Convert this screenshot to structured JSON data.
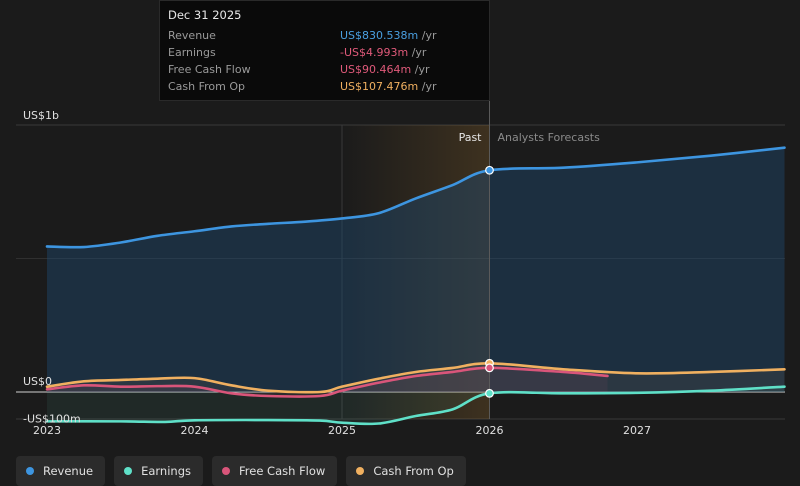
{
  "tooltip": {
    "date": "Dec 31 2025",
    "rows": [
      {
        "label": "Revenue",
        "value": "US$830.538m",
        "unit": "/yr",
        "color": "#4a9fe0"
      },
      {
        "label": "Earnings",
        "value": "-US$4.993m",
        "unit": "/yr",
        "color": "#e05a7a"
      },
      {
        "label": "Free Cash Flow",
        "value": "US$90.464m",
        "unit": "/yr",
        "color": "#e05a7a"
      },
      {
        "label": "Cash From Op",
        "value": "US$107.476m",
        "unit": "/yr",
        "color": "#f0b060"
      }
    ]
  },
  "legend": [
    {
      "label": "Revenue",
      "color": "#3d95e0"
    },
    {
      "label": "Earnings",
      "color": "#5fe0c8"
    },
    {
      "label": "Free Cash Flow",
      "color": "#d9557a"
    },
    {
      "label": "Cash From Op",
      "color": "#f0b060"
    }
  ],
  "chart_data": {
    "type": "area",
    "y_tick_labels": [
      "US$1b",
      "US$0",
      "-US$100m"
    ],
    "y_ticks": [
      1000,
      0,
      -100
    ],
    "ylim": [
      -200,
      1000
    ],
    "xlim": [
      2022.9,
      2028.0
    ],
    "x_ticks": [
      2023,
      2024,
      2025,
      2026,
      2027
    ],
    "x_tick_labels": [
      "2023",
      "2024",
      "2025",
      "2026",
      "2027"
    ],
    "past_label": "Past",
    "forecast_label": "Analysts Forecasts",
    "divider_x": 2026.0,
    "highlight_start_x": 2025.0,
    "series": [
      {
        "name": "Revenue",
        "color": "#3d95e0",
        "fill": true,
        "points": [
          [
            2023.0,
            545
          ],
          [
            2023.25,
            543
          ],
          [
            2023.5,
            560
          ],
          [
            2023.75,
            585
          ],
          [
            2024.0,
            602
          ],
          [
            2024.25,
            620
          ],
          [
            2024.5,
            630
          ],
          [
            2024.75,
            638
          ],
          [
            2025.0,
            650
          ],
          [
            2025.25,
            670
          ],
          [
            2025.5,
            725
          ],
          [
            2025.75,
            775
          ],
          [
            2026.0,
            830.5
          ],
          [
            2026.5,
            840
          ],
          [
            2027.0,
            860
          ],
          [
            2027.5,
            885
          ],
          [
            2028.0,
            915
          ]
        ]
      },
      {
        "name": "Earnings",
        "color": "#5fe0c8",
        "fill": false,
        "points": [
          [
            2023.0,
            -110
          ],
          [
            2023.5,
            -110
          ],
          [
            2023.8,
            -112
          ],
          [
            2024.0,
            -106
          ],
          [
            2024.5,
            -105
          ],
          [
            2024.85,
            -107
          ],
          [
            2025.0,
            -115
          ],
          [
            2025.25,
            -118
          ],
          [
            2025.5,
            -90
          ],
          [
            2025.75,
            -65
          ],
          [
            2026.0,
            -5
          ],
          [
            2026.5,
            -5
          ],
          [
            2027.0,
            -3
          ],
          [
            2027.5,
            5
          ],
          [
            2028.0,
            20
          ]
        ]
      },
      {
        "name": "Free Cash Flow",
        "color": "#d9557a",
        "fill": false,
        "points": [
          [
            2023.0,
            10
          ],
          [
            2023.25,
            25
          ],
          [
            2023.5,
            20
          ],
          [
            2023.75,
            22
          ],
          [
            2024.0,
            20
          ],
          [
            2024.25,
            -5
          ],
          [
            2024.5,
            -15
          ],
          [
            2024.85,
            -15
          ],
          [
            2025.0,
            5
          ],
          [
            2025.25,
            35
          ],
          [
            2025.5,
            60
          ],
          [
            2025.75,
            75
          ],
          [
            2026.0,
            90.5
          ],
          [
            2026.5,
            75
          ],
          [
            2026.8,
            60
          ]
        ]
      },
      {
        "name": "Cash From Op",
        "color": "#f0b060",
        "fill": false,
        "points": [
          [
            2023.0,
            20
          ],
          [
            2023.25,
            40
          ],
          [
            2023.5,
            45
          ],
          [
            2023.75,
            50
          ],
          [
            2024.0,
            52
          ],
          [
            2024.25,
            25
          ],
          [
            2024.5,
            5
          ],
          [
            2024.85,
            0
          ],
          [
            2025.0,
            20
          ],
          [
            2025.25,
            50
          ],
          [
            2025.5,
            75
          ],
          [
            2025.75,
            90
          ],
          [
            2026.0,
            107.5
          ],
          [
            2026.5,
            85
          ],
          [
            2027.0,
            70
          ],
          [
            2027.5,
            75
          ],
          [
            2028.0,
            85
          ]
        ]
      }
    ],
    "markers": [
      {
        "x": 2026.0,
        "y": 830.5,
        "color": "#3d95e0"
      },
      {
        "x": 2026.0,
        "y": 107.5,
        "color": "#f0b060"
      },
      {
        "x": 2026.0,
        "y": 90.5,
        "color": "#d9557a"
      },
      {
        "x": 2026.0,
        "y": -5,
        "color": "#5fe0c8"
      }
    ]
  }
}
